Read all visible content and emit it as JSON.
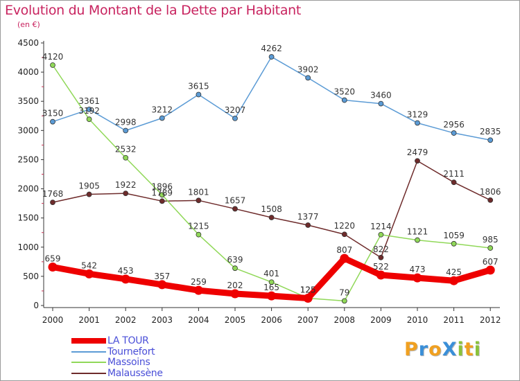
{
  "title": "Evolution du Montant de la Dette par Habitant",
  "subtitle": "(en €)",
  "logo_text": "ProXiti",
  "logo_colors": [
    "#f0a020",
    "#3a8fd8",
    "#f0a020",
    "#3a8fd8",
    "#8ac23a",
    "#f0a020",
    "#8ac23a"
  ],
  "chart_data": {
    "type": "line",
    "x": [
      "2000",
      "2001",
      "2002",
      "2003",
      "2004",
      "2005",
      "2006",
      "2007",
      "2008",
      "2009",
      "2010",
      "2011",
      "2012"
    ],
    "ylim": [
      0,
      4500
    ],
    "yticks": [
      0,
      500,
      1000,
      1500,
      2000,
      2500,
      3000,
      3500,
      4000,
      4500
    ],
    "grid": false,
    "legend_position": "bottom-left",
    "series": [
      {
        "name": "LA TOUR",
        "color": "#ee0000",
        "values": [
          659,
          542,
          453,
          357,
          259,
          202,
          165,
          125,
          807,
          522,
          473,
          425,
          607
        ]
      },
      {
        "name": "Tournefort",
        "color": "#5b9bd5",
        "values": [
          3150,
          3361,
          2998,
          3212,
          3615,
          3207,
          4262,
          3902,
          3520,
          3460,
          3129,
          2956,
          2835
        ]
      },
      {
        "name": "Massoins",
        "color": "#90d858",
        "values": [
          4120,
          3192,
          2532,
          1896,
          1215,
          639,
          401,
          125,
          79,
          1214,
          1121,
          1059,
          985
        ]
      },
      {
        "name": "Malaussène",
        "color": "#6e2b2b",
        "values": [
          1768,
          1905,
          1922,
          1789,
          1801,
          1657,
          1508,
          1377,
          1220,
          822,
          2479,
          2111,
          1806
        ]
      }
    ]
  }
}
